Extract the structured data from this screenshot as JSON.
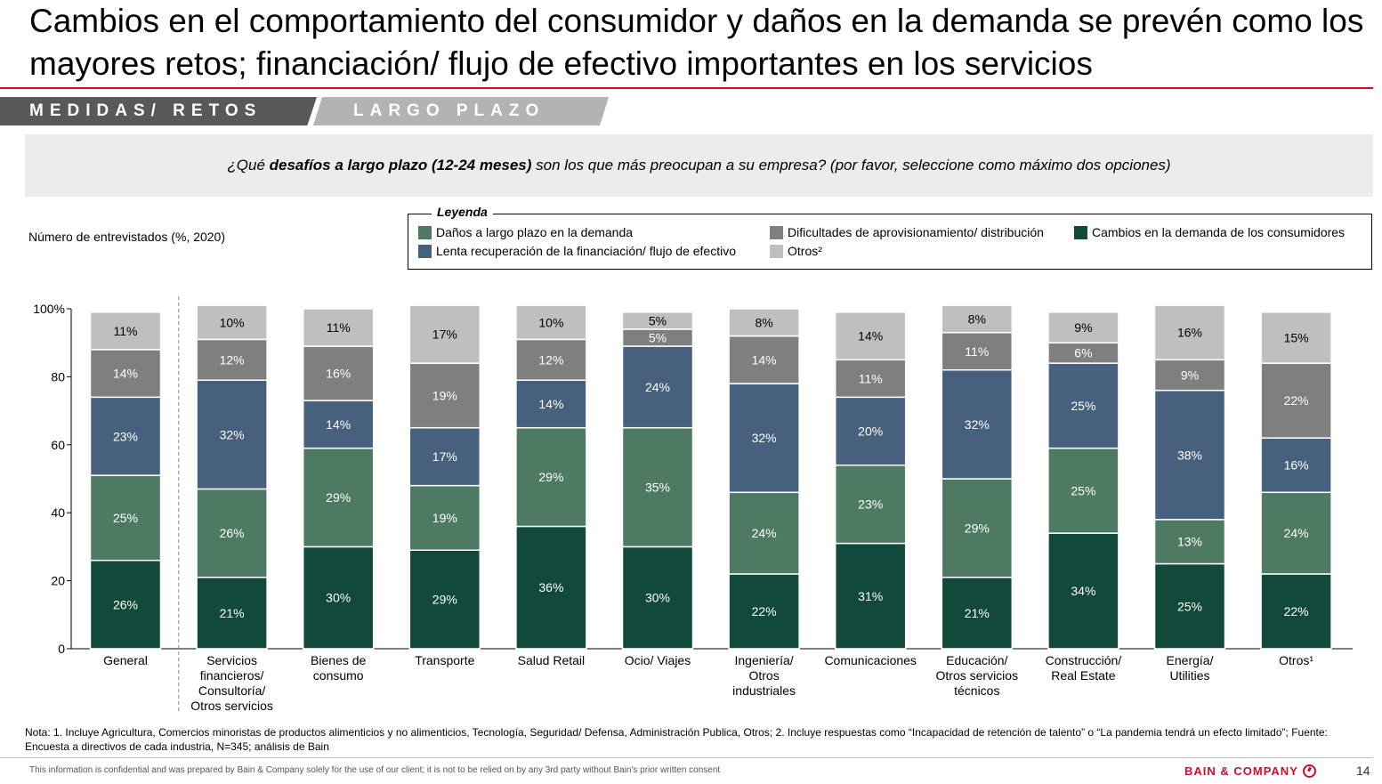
{
  "title": "Cambios en el comportamiento del consumidor y daños en la demanda se prevén como los mayores retos; financiación/ flujo de efectivo importantes en los servicios",
  "tabs": {
    "left": "MEDIDAS/ RETOS",
    "right": "LARGO PLAZO"
  },
  "question": {
    "prefix": "¿Qué ",
    "bold": "desafíos a largo plazo (12-24 meses)",
    "suffix": " son los que más preocupan a su empresa? (por favor, seleccione como máximo dos opciones)"
  },
  "respondents_label": "Número de entrevistados (%, 2020)",
  "legend": {
    "title": "Leyenda",
    "items": [
      {
        "label": "Daños a largo plazo en la demanda",
        "color": "#4e7a63"
      },
      {
        "label": "Lenta recuperación de la financiación/ flujo de efectivo",
        "color": "#46607d"
      },
      {
        "label": "Dificultades de aprovisionamiento/ distribución",
        "color": "#7f7f7f"
      },
      {
        "label": "Otros²",
        "color": "#bfbfbf"
      },
      {
        "label": "Cambios en la demanda de los consumidores",
        "color": "#114a3b"
      }
    ]
  },
  "chart_data": {
    "type": "bar",
    "stacked": true,
    "ylim": [
      0,
      100
    ],
    "yticks": [
      "100%",
      "80",
      "60",
      "40",
      "20",
      "0"
    ],
    "categories": [
      "General",
      "Servicios financieros/ Consultoría/ Otros servicios",
      "Bienes de consumo",
      "Transporte",
      "Salud Retail",
      "Ocio/ Viajes",
      "Ingeniería/ Otros industriales",
      "Comunicaciones",
      "Educación/ Otros servicios técnicos",
      "Construcción/ Real Estate",
      "Energía/ Utilities",
      "Otros¹"
    ],
    "category_lines": [
      [
        "General"
      ],
      [
        "Servicios",
        "financieros/",
        "Consultoría/",
        "Otros servicios"
      ],
      [
        "Bienes de",
        "consumo"
      ],
      [
        "Transporte"
      ],
      [
        "Salud Retail"
      ],
      [
        "Ocio/ Viajes"
      ],
      [
        "Ingeniería/",
        "Otros",
        "industriales"
      ],
      [
        "Comunicaciones"
      ],
      [
        "Educación/",
        "Otros servicios",
        "técnicos"
      ],
      [
        "Construcción/",
        "Real Estate"
      ],
      [
        "Energía/",
        "Utilities"
      ],
      [
        "Otros¹"
      ]
    ],
    "series": [
      {
        "name": "Cambios en la demanda de los consumidores",
        "color": "#114a3b",
        "label_color": "#ffffff",
        "values": [
          26,
          21,
          30,
          29,
          36,
          30,
          22,
          31,
          21,
          34,
          25,
          22
        ]
      },
      {
        "name": "Daños a largo plazo en la demanda",
        "color": "#4e7a63",
        "label_color": "#ffffff",
        "values": [
          25,
          26,
          29,
          19,
          29,
          35,
          24,
          23,
          29,
          25,
          13,
          24
        ]
      },
      {
        "name": "Lenta recuperación de la financiación/ flujo de efectivo",
        "color": "#46607d",
        "label_color": "#ffffff",
        "values": [
          23,
          32,
          14,
          17,
          14,
          24,
          32,
          20,
          32,
          25,
          38,
          16
        ]
      },
      {
        "name": "Dificultades de aprovisionamiento/ distribución",
        "color": "#7f7f7f",
        "label_color": "#ffffff",
        "values": [
          14,
          12,
          16,
          19,
          12,
          5,
          14,
          11,
          11,
          6,
          9,
          22
        ]
      },
      {
        "name": "Otros²",
        "color": "#bfbfbf",
        "label_color": "#000000",
        "values": [
          11,
          10,
          11,
          17,
          10,
          5,
          8,
          14,
          8,
          9,
          16,
          15
        ]
      }
    ]
  },
  "note": "Nota: 1. Incluye Agricultura, Comercios minoristas de productos alimenticios y no alimenticios, Tecnología, Seguridad/ Defensa, Administración Publica, Otros; 2. Incluye respuestas como “Incapacidad de retención de talento” o “La pandemia tendrá un efecto limitado”; Fuente: Encuesta a directivos de cada industria, N=345; análisis de Bain",
  "footer": {
    "confidential": "This information is confidential and was prepared by Bain & Company solely for the use of our client; it is not to be relied on by any 3rd party without Bain's prior written consent",
    "brand": "BAIN & COMPANY",
    "page": "14"
  }
}
